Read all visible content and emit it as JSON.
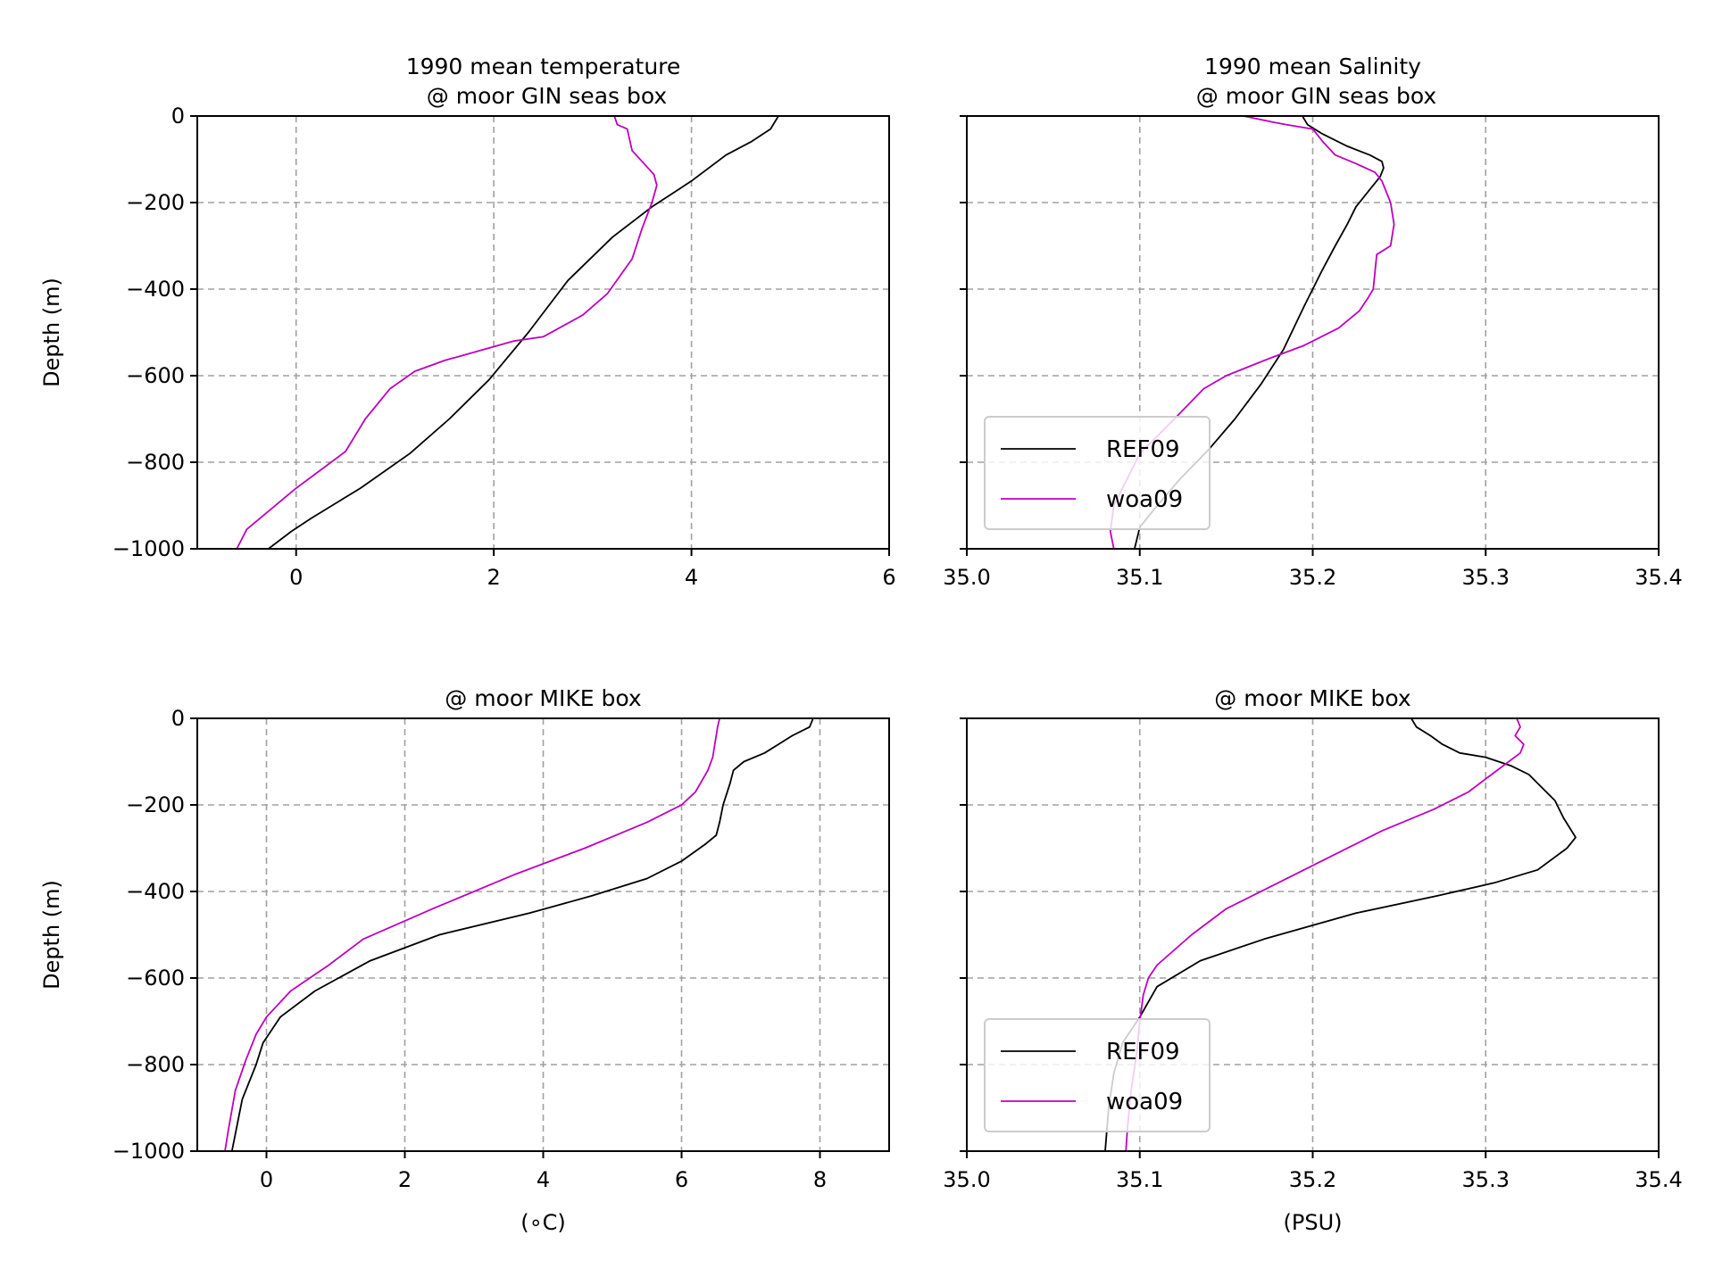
{
  "colors": {
    "REF09": "#000000",
    "woa09": "#c000c0",
    "grid": "#a0a0a0"
  },
  "chart_data": [
    {
      "type": "line",
      "panel": "top-left",
      "title": "1990 mean temperature\n @ moor GIN seas box",
      "xlabel": "",
      "ylabel": "Depth (m)",
      "xlim": [
        -1,
        6
      ],
      "ylim": [
        -1000,
        0
      ],
      "xticks": [
        0,
        2,
        4,
        6
      ],
      "xtick_labels": [
        "0",
        "2",
        "4",
        "6"
      ],
      "yticks": [
        0,
        -200,
        -400,
        -600,
        -800,
        -1000
      ],
      "ytick_labels": [
        "0",
        "−200",
        "−400",
        "−600",
        "−800",
        "−1000"
      ],
      "show_ytick_labels": true,
      "grid": true,
      "legend": null,
      "series": [
        {
          "name": "REF09",
          "color": "#000000",
          "x": [
            4.88,
            4.8,
            4.6,
            4.35,
            4.0,
            3.6,
            3.2,
            2.75,
            2.35,
            1.95,
            1.55,
            1.15,
            0.65,
            0.15,
            -0.05,
            -0.28
          ],
          "y": [
            0,
            -30,
            -60,
            -90,
            -150,
            -210,
            -280,
            -380,
            -500,
            -610,
            -700,
            -780,
            -860,
            -930,
            -960,
            -1000
          ]
        },
        {
          "name": "woa09",
          "color": "#c000c0",
          "x": [
            3.22,
            3.25,
            3.35,
            3.4,
            3.52,
            3.62,
            3.65,
            3.6,
            3.5,
            3.4,
            3.15,
            2.9,
            2.5,
            2.2,
            1.5,
            1.2,
            0.95,
            0.7,
            0.5,
            0.0,
            -0.5,
            -0.6
          ],
          "y": [
            0,
            -20,
            -30,
            -80,
            -110,
            -135,
            -160,
            -200,
            -260,
            -330,
            -410,
            -460,
            -510,
            -520,
            -565,
            -590,
            -630,
            -700,
            -775,
            -860,
            -955,
            -1000
          ]
        }
      ]
    },
    {
      "type": "line",
      "panel": "top-right",
      "title": "1990 mean Salinity\n @ moor GIN seas box",
      "xlabel": "",
      "ylabel": "",
      "xlim": [
        35.0,
        35.4
      ],
      "ylim": [
        -1000,
        0
      ],
      "xticks": [
        35.0,
        35.1,
        35.2,
        35.3,
        35.4
      ],
      "xtick_labels": [
        "35.0",
        "35.1",
        "35.2",
        "35.3",
        "35.4"
      ],
      "yticks": [
        0,
        -200,
        -400,
        -600,
        -800,
        -1000
      ],
      "ytick_labels": [],
      "show_ytick_labels": false,
      "grid": true,
      "legend": "lower-left",
      "series": [
        {
          "name": "REF09",
          "color": "#000000",
          "x": [
            35.194,
            35.197,
            35.205,
            35.22,
            35.233,
            35.24,
            35.241,
            35.239,
            35.233,
            35.225,
            35.22,
            35.213,
            35.205,
            35.195,
            35.183,
            35.17,
            35.155,
            35.14,
            35.123,
            35.108,
            35.1,
            35.097
          ],
          "y": [
            0,
            -20,
            -40,
            -70,
            -90,
            -105,
            -120,
            -140,
            -170,
            -210,
            -250,
            -300,
            -360,
            -440,
            -540,
            -620,
            -700,
            -770,
            -840,
            -910,
            -950,
            -1000
          ]
        },
        {
          "name": "woa09",
          "color": "#c000c0",
          "x": [
            35.16,
            35.178,
            35.185,
            35.2,
            35.206,
            35.213,
            35.225,
            35.236,
            35.24,
            35.245,
            35.247,
            35.245,
            35.237,
            35.235,
            35.232,
            35.227,
            35.215,
            35.195,
            35.175,
            35.15,
            35.137,
            35.12,
            35.1,
            35.09,
            35.085,
            35.083,
            35.085
          ],
          "y": [
            0,
            -15,
            -20,
            -30,
            -60,
            -90,
            -110,
            -130,
            -150,
            -200,
            -250,
            -300,
            -320,
            -400,
            -420,
            -450,
            -490,
            -530,
            -560,
            -600,
            -630,
            -700,
            -780,
            -860,
            -900,
            -960,
            -1000
          ]
        }
      ]
    },
    {
      "type": "line",
      "panel": "bottom-left",
      "title": "@ moor MIKE box",
      "xlabel": "(∘C)",
      "ylabel": "Depth (m)",
      "xlim": [
        -1,
        9
      ],
      "ylim": [
        -1000,
        0
      ],
      "xticks": [
        0,
        2,
        4,
        6,
        8
      ],
      "xtick_labels": [
        "0",
        "2",
        "4",
        "6",
        "8"
      ],
      "yticks": [
        0,
        -200,
        -400,
        -600,
        -800,
        -1000
      ],
      "ytick_labels": [
        "0",
        "−200",
        "−400",
        "−600",
        "−800",
        "−1000"
      ],
      "show_ytick_labels": true,
      "grid": true,
      "legend": null,
      "series": [
        {
          "name": "REF09",
          "color": "#000000",
          "x": [
            7.9,
            7.85,
            7.6,
            7.4,
            7.2,
            6.9,
            6.75,
            6.7,
            6.6,
            6.55,
            6.5,
            6.35,
            6.0,
            5.5,
            4.7,
            3.8,
            2.5,
            1.5,
            0.7,
            0.2,
            -0.05,
            -0.15,
            -0.35,
            -0.5
          ],
          "y": [
            0,
            -20,
            -40,
            -60,
            -80,
            -100,
            -120,
            -150,
            -200,
            -240,
            -270,
            -290,
            -330,
            -370,
            -410,
            -450,
            -500,
            -560,
            -630,
            -690,
            -750,
            -800,
            -880,
            -1000
          ]
        },
        {
          "name": "woa09",
          "color": "#c000c0",
          "x": [
            6.55,
            6.52,
            6.5,
            6.48,
            6.45,
            6.38,
            6.2,
            6.0,
            5.5,
            4.6,
            3.6,
            2.4,
            1.4,
            0.9,
            0.35,
            0.0,
            -0.15,
            -0.3,
            -0.45,
            -0.55,
            -0.6
          ],
          "y": [
            0,
            -20,
            -40,
            -60,
            -90,
            -120,
            -170,
            -200,
            -240,
            -300,
            -360,
            -440,
            -510,
            -570,
            -630,
            -690,
            -730,
            -790,
            -860,
            -950,
            -1000
          ]
        }
      ]
    },
    {
      "type": "line",
      "panel": "bottom-right",
      "title": "@ moor MIKE box",
      "xlabel": "(PSU)",
      "ylabel": "",
      "xlim": [
        35.0,
        35.4
      ],
      "ylim": [
        -1000,
        0
      ],
      "xticks": [
        35.0,
        35.1,
        35.2,
        35.3,
        35.4
      ],
      "xtick_labels": [
        "35.0",
        "35.1",
        "35.2",
        "35.3",
        "35.4"
      ],
      "yticks": [
        0,
        -200,
        -400,
        -600,
        -800,
        -1000
      ],
      "ytick_labels": [],
      "show_ytick_labels": false,
      "grid": true,
      "legend": "lower-left",
      "series": [
        {
          "name": "REF09",
          "color": "#000000",
          "x": [
            35.257,
            35.26,
            35.268,
            35.275,
            35.285,
            35.3,
            35.315,
            35.325,
            35.33,
            35.34,
            35.345,
            35.352,
            35.347,
            35.33,
            35.305,
            35.272,
            35.225,
            35.172,
            35.135,
            35.11,
            35.1,
            35.09,
            35.085,
            35.082,
            35.08
          ],
          "y": [
            0,
            -20,
            -40,
            -60,
            -80,
            -90,
            -110,
            -130,
            -150,
            -190,
            -230,
            -275,
            -300,
            -350,
            -380,
            -410,
            -450,
            -510,
            -560,
            -620,
            -690,
            -750,
            -820,
            -900,
            -1000
          ]
        },
        {
          "name": "woa09",
          "color": "#c000c0",
          "x": [
            35.318,
            35.32,
            35.317,
            35.322,
            35.32,
            35.31,
            35.3,
            35.29,
            35.27,
            35.24,
            35.21,
            35.18,
            35.15,
            35.13,
            35.11,
            35.105,
            35.102,
            35.1,
            35.098,
            35.095,
            35.093,
            35.092
          ],
          "y": [
            0,
            -20,
            -40,
            -60,
            -80,
            -110,
            -140,
            -170,
            -210,
            -260,
            -320,
            -380,
            -440,
            -500,
            -570,
            -600,
            -640,
            -700,
            -780,
            -860,
            -940,
            -1000
          ]
        }
      ]
    }
  ]
}
